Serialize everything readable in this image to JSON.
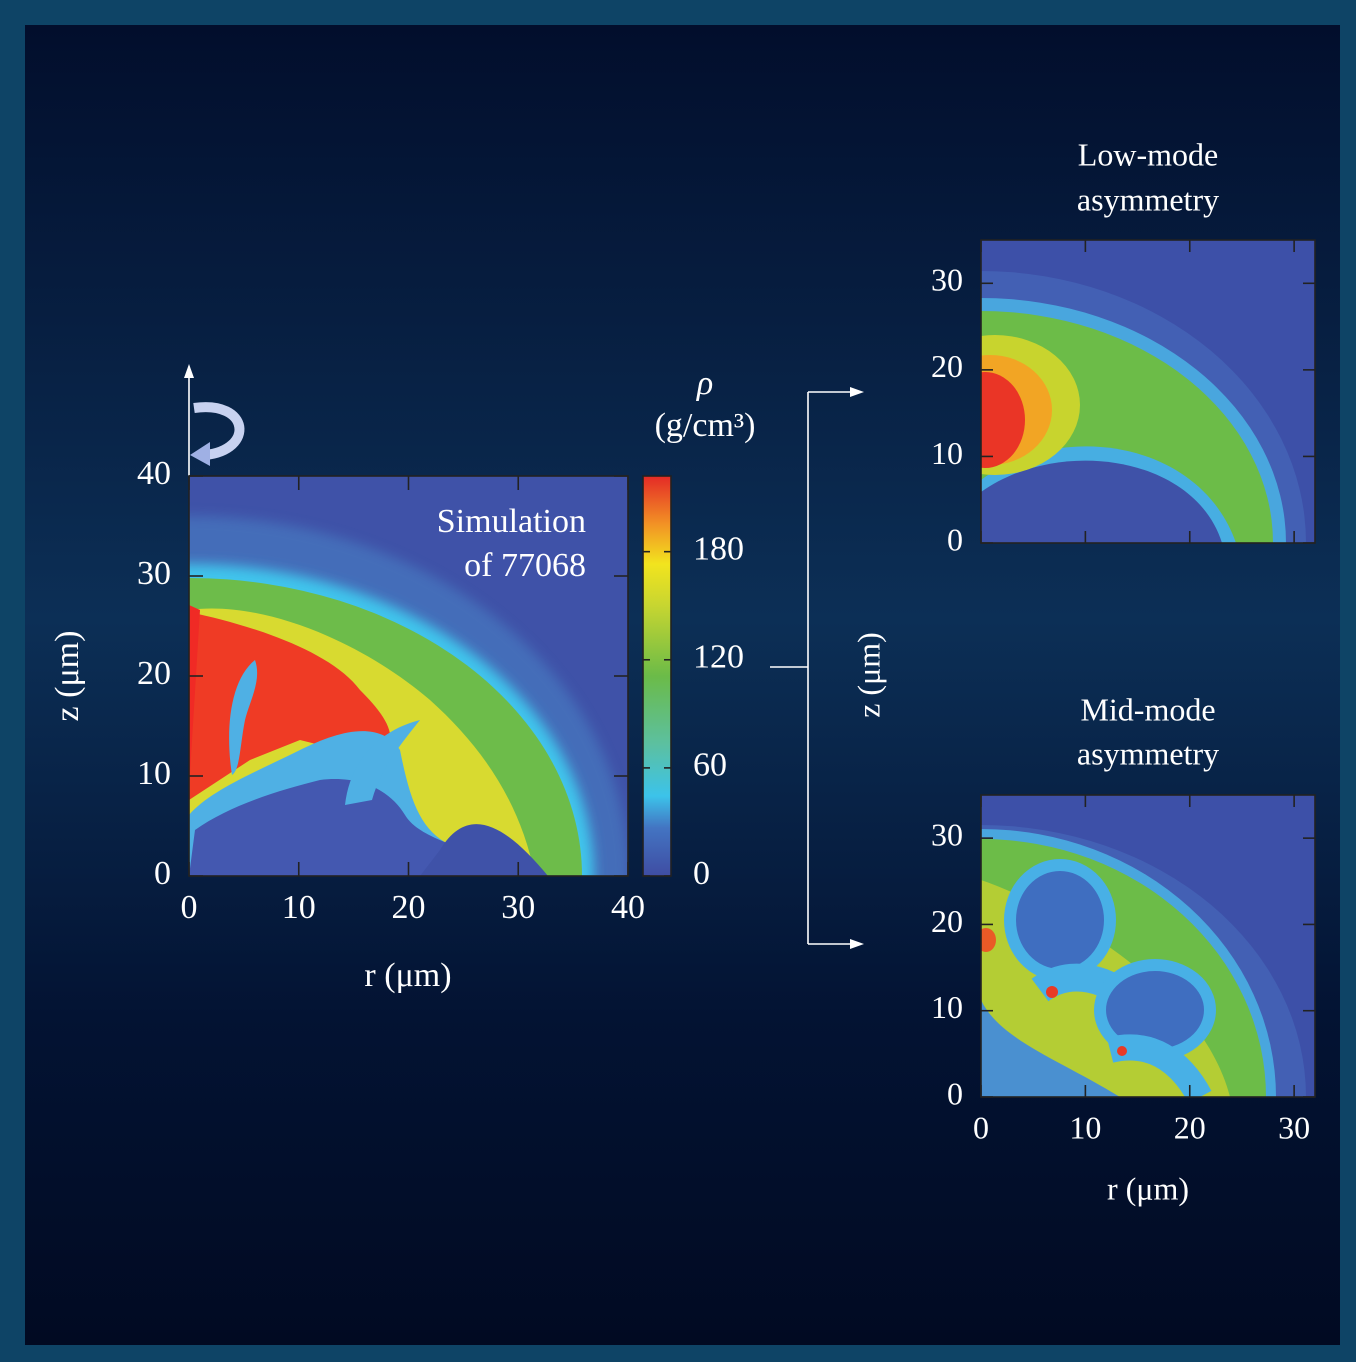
{
  "chart_data": [
    {
      "type": "density-map",
      "annotation": [
        "Simulation",
        "of 77068"
      ],
      "xlabel": "r (μm)",
      "ylabel": "z (μm)",
      "xlim": [
        0,
        40
      ],
      "ylim": [
        0,
        40
      ],
      "xticks": [
        0,
        10,
        20,
        30,
        40
      ],
      "yticks": [
        0,
        10,
        20,
        30,
        40
      ]
    },
    {
      "type": "colorbar",
      "title": "ρ",
      "units": "(g/cm³)",
      "ylim": [
        0,
        222
      ],
      "yticks": [
        0,
        60,
        120,
        180
      ]
    },
    {
      "type": "density-map",
      "title": [
        "Low-mode",
        "asymmetry"
      ],
      "ylabel": "z (μm)",
      "xlim": [
        0,
        32
      ],
      "ylim": [
        0,
        35
      ],
      "xticks": [
        0,
        10,
        20,
        30
      ],
      "yticks": [
        0,
        10,
        20,
        30
      ],
      "xtick_labels": false
    },
    {
      "type": "density-map",
      "title": [
        "Mid-mode",
        "asymmetry"
      ],
      "xlabel": "r (μm)",
      "xlim": [
        0,
        32
      ],
      "ylim": [
        0,
        35
      ],
      "xticks": [
        0,
        10,
        20,
        30
      ],
      "yticks": [
        0,
        10,
        20,
        30
      ],
      "xtick_labels": true
    }
  ]
}
